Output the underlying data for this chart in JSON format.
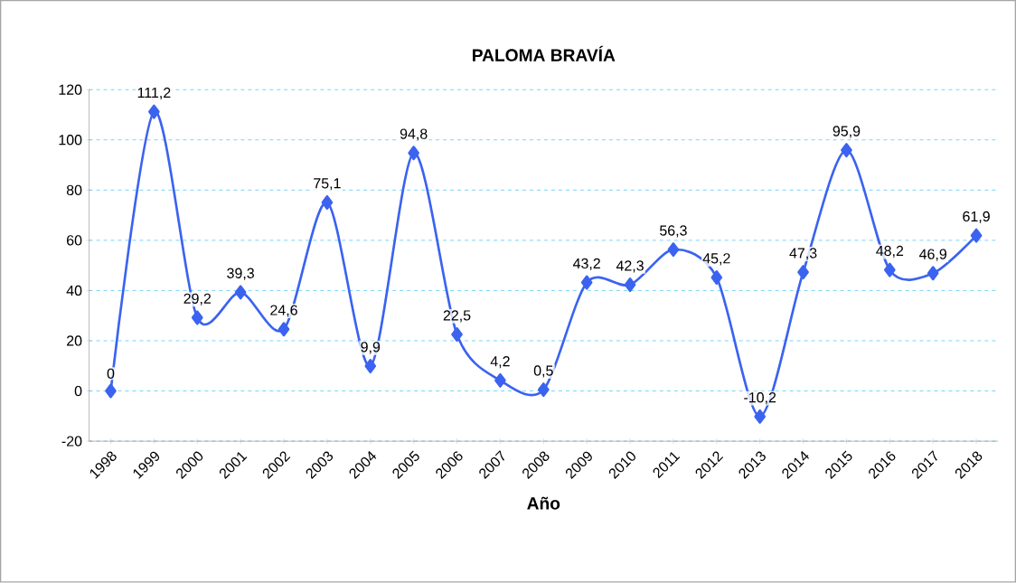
{
  "chart_data": {
    "type": "line",
    "title": "PALOMA BRAVÍA",
    "xlabel": "Año",
    "categories": [
      "1998",
      "1999",
      "2000",
      "2001",
      "2002",
      "2003",
      "2004",
      "2005",
      "2006",
      "2007",
      "2008",
      "2009",
      "2010",
      "2011",
      "2012",
      "2013",
      "2014",
      "2015",
      "2016",
      "2017",
      "2018"
    ],
    "values": [
      0,
      111.2,
      29.2,
      39.3,
      24.6,
      75.1,
      9.9,
      94.8,
      22.5,
      4.2,
      0.5,
      43.2,
      42.3,
      56.3,
      45.2,
      -10.2,
      47.3,
      95.9,
      48.2,
      46.9,
      61.9
    ],
    "value_labels": [
      "0",
      "111,2",
      "29,2",
      "39,3",
      "24,6",
      "75,1",
      "9,9",
      "94,8",
      "22,5",
      "4,2",
      "0,5",
      "43,2",
      "42,3",
      "56,3",
      "45,2",
      "-10,2",
      "47,3",
      "95,9",
      "48,2",
      "46,9",
      "61,9"
    ],
    "color": "#3b63f0",
    "marker": "diamond",
    "grid": "y",
    "ylim": [
      -20,
      120
    ],
    "yticks": [
      -20,
      0,
      20,
      40,
      60,
      80,
      100,
      120
    ]
  }
}
